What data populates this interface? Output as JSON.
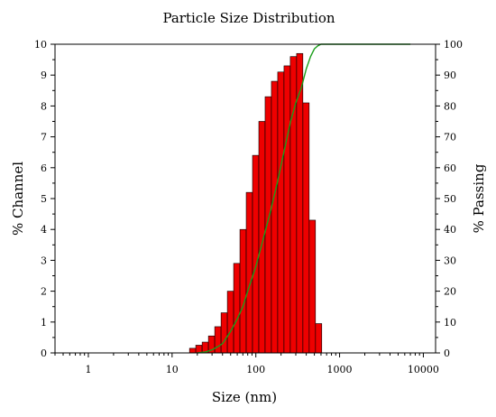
{
  "chart_data": {
    "type": "bar",
    "title": "Particle Size Distribution",
    "xlabel": "Size (nm)",
    "ylabel_left": "% Channel",
    "ylabel_right": "% Passing",
    "x_scale": "log",
    "xlim": [
      0.4,
      14000
    ],
    "x_ticks": [
      1,
      10,
      100,
      1000,
      10000
    ],
    "x_tick_labels": [
      "1",
      "10",
      "100",
      "1000",
      "10000"
    ],
    "ylim_left": [
      0,
      10
    ],
    "y_ticks_left": [
      0,
      1,
      2,
      3,
      4,
      5,
      6,
      7,
      8,
      9,
      10
    ],
    "ylim_right": [
      0,
      100
    ],
    "y_ticks_right": [
      0,
      10,
      20,
      30,
      40,
      50,
      60,
      70,
      80,
      90,
      100
    ],
    "grid": false,
    "series": [
      {
        "kind": "bar",
        "axis": "left",
        "color": "#ee0000",
        "x": [
          17.6,
          20.9,
          24.9,
          29.6,
          35.2,
          41.9,
          49.8,
          59.2,
          70.4,
          83.7,
          99.5,
          118.3,
          140.6,
          167.2,
          198.8,
          236.4,
          281.1,
          334.3,
          397.5,
          472.7,
          562.1
        ],
        "values": [
          0.15,
          0.25,
          0.35,
          0.55,
          0.85,
          1.3,
          2.0,
          2.9,
          4.0,
          5.2,
          6.4,
          7.5,
          8.3,
          8.8,
          9.1,
          9.3,
          9.6,
          9.7,
          8.1,
          4.3,
          0.95
        ]
      },
      {
        "kind": "line",
        "axis": "right",
        "color": "#1a9e1a",
        "x": [
          20,
          25,
          30,
          35,
          40,
          50,
          60,
          70,
          80,
          100,
          120,
          150,
          180,
          220,
          260,
          300,
          350,
          400,
          450,
          500,
          550,
          600,
          700,
          1000,
          3000,
          7000
        ],
        "values": [
          0,
          0.3,
          1,
          2,
          3,
          7,
          11,
          15,
          20,
          28,
          36,
          46,
          55,
          66,
          75,
          81,
          86,
          92,
          96,
          98.5,
          99.5,
          100,
          100,
          100,
          100,
          100
        ]
      }
    ]
  }
}
